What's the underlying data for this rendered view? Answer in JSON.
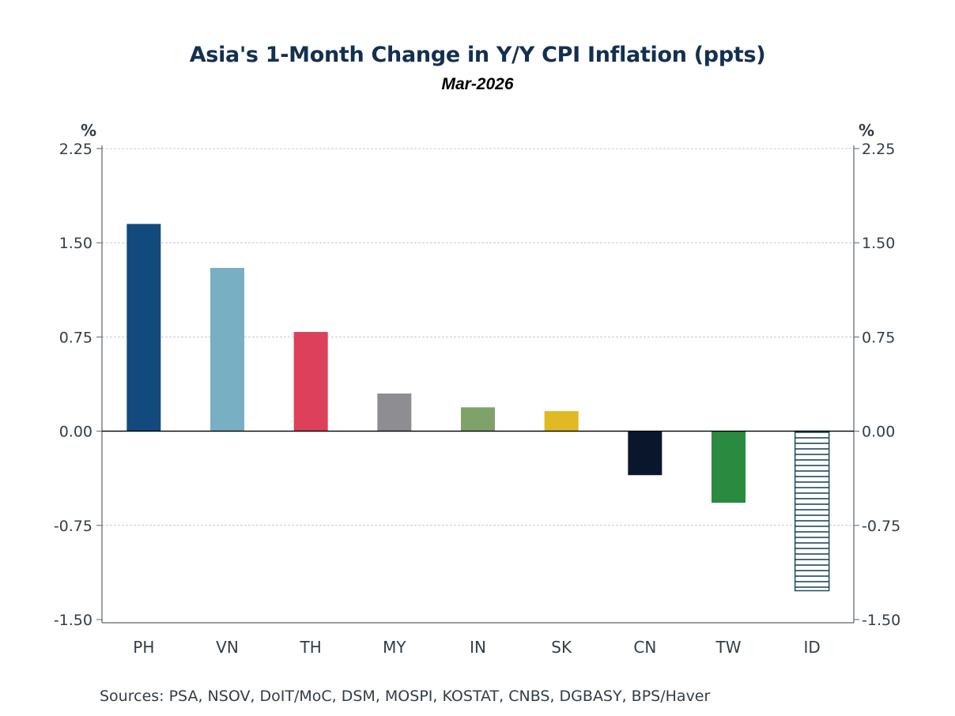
{
  "chart_data": {
    "type": "bar",
    "title": "Asia's 1-Month Change in Y/Y CPI Inflation (ppts)",
    "subtitle": "Mar-2026",
    "xlabel": "",
    "ylabel": "%",
    "ylabel_right": "%",
    "ylim": [
      -1.5,
      2.25
    ],
    "yticks": [
      -1.5,
      -0.75,
      0.0,
      0.75,
      1.5,
      2.25
    ],
    "ytick_labels": [
      "-1.50",
      "-0.75",
      "0.00",
      "0.75",
      "1.50",
      "2.25"
    ],
    "grid": true,
    "categories": [
      "PH",
      "VN",
      "TH",
      "MY",
      "IN",
      "SK",
      "CN",
      "TW",
      "ID"
    ],
    "values": [
      1.65,
      1.3,
      0.79,
      0.3,
      0.19,
      0.16,
      -0.35,
      -0.57,
      -1.27
    ],
    "colors": [
      "#124a7e",
      "#78afc3",
      "#dd405a",
      "#8e8e92",
      "#7fa26a",
      "#e1b924",
      "#0a162c",
      "#2a8a40",
      "hatched"
    ],
    "hatch_color": "#1e4a5e",
    "source": "Sources:  PSA, NSOV, DoIT/MoC, DSM, MOSPI, KOSTAT, CNBS, DGBASY, BPS/Haver"
  }
}
